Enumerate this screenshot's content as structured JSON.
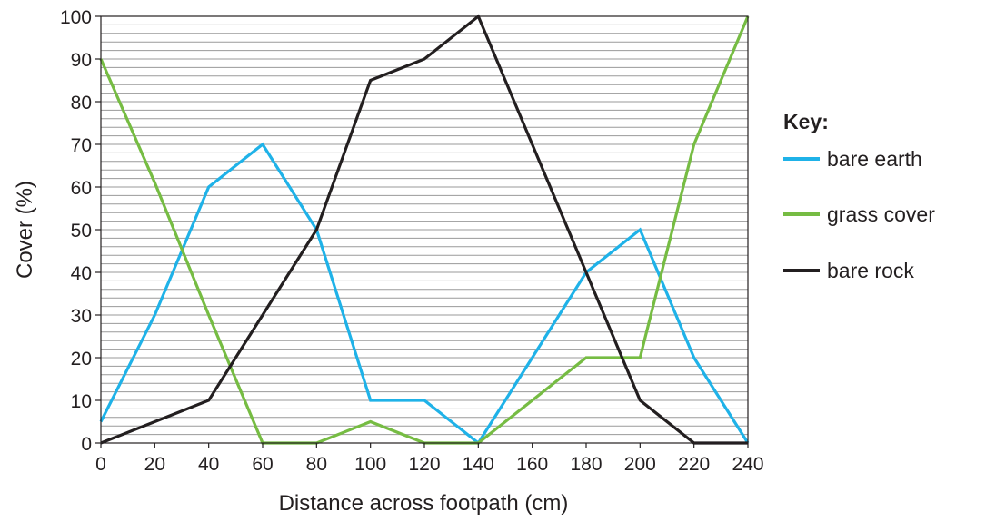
{
  "chart_data": {
    "type": "line",
    "title": "",
    "xlabel": "Distance across footpath (cm)",
    "ylabel": "Cover (%)",
    "x": [
      0,
      20,
      40,
      60,
      80,
      100,
      120,
      140,
      160,
      180,
      200,
      220,
      240
    ],
    "xticks": [
      "0",
      "20",
      "40",
      "60",
      "80",
      "100",
      "120",
      "140",
      "160",
      "180",
      "200",
      "220",
      "240"
    ],
    "yticks": [
      "0",
      "10",
      "20",
      "30",
      "40",
      "50",
      "60",
      "70",
      "80",
      "90",
      "100"
    ],
    "xlim": [
      0,
      240
    ],
    "ylim": [
      0,
      100
    ],
    "grid": "horizontal minor lines every 2%",
    "legend_position": "right",
    "legend_title": "Key:",
    "series": [
      {
        "name": "bare earth",
        "color": "#1fb2e8",
        "values": [
          5,
          30,
          60,
          70,
          50,
          10,
          10,
          0,
          20,
          40,
          50,
          20,
          0
        ]
      },
      {
        "name": "grass cover",
        "color": "#76bc43",
        "values": [
          90,
          61,
          30,
          0,
          0,
          5,
          0,
          0,
          10,
          20,
          20,
          70,
          100
        ]
      },
      {
        "name": "bare rock",
        "color": "#231f20",
        "values": [
          0,
          5,
          10,
          30,
          50,
          85,
          90,
          100,
          70,
          40,
          10,
          0,
          0
        ]
      }
    ]
  }
}
